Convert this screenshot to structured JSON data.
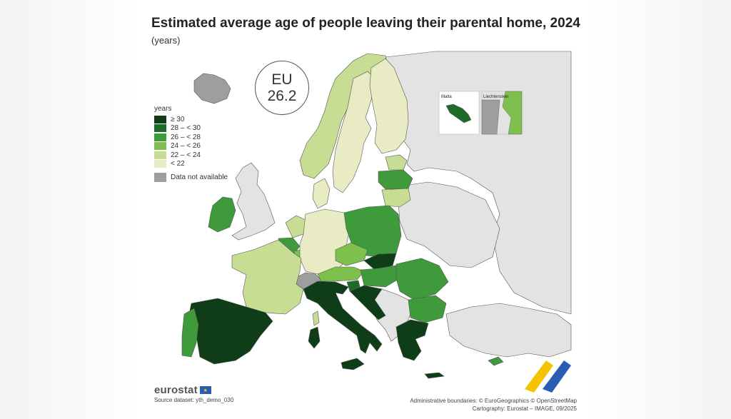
{
  "title": "Estimated average age of people leaving their parental home, 2024",
  "subtitle": "(years)",
  "eu_badge": {
    "label": "EU",
    "value": "26.2"
  },
  "legend": {
    "title": "years",
    "classes": [
      {
        "label": "≥ 30",
        "color": "#0e3d17"
      },
      {
        "label": "28 – < 30",
        "color": "#1f6b2a"
      },
      {
        "label": "26 – < 28",
        "color": "#3e9a3a"
      },
      {
        "label": "24 – < 26",
        "color": "#7fbf4e"
      },
      {
        "label": "22 – < 24",
        "color": "#c6dd93"
      },
      {
        "label": "< 22",
        "color": "#e8ebc4"
      }
    ],
    "not_available": {
      "label": "Data not available",
      "color": "#9e9e9e"
    }
  },
  "insets": {
    "malta": "Malta",
    "liechtenstein": "Liechtenstein"
  },
  "brand": "eurostat",
  "source": "Source dataset: yth_demo_030",
  "credits": {
    "line1": "Administrative boundaries: © EuroGeographics © OpenStreetMap",
    "line2": "Cartography: Eurostat – IMAGE, 09/2025"
  },
  "colors": {
    "non_eu": "#e3e3e3",
    "border": "#555555",
    "no_data": "#9e9e9e"
  }
}
